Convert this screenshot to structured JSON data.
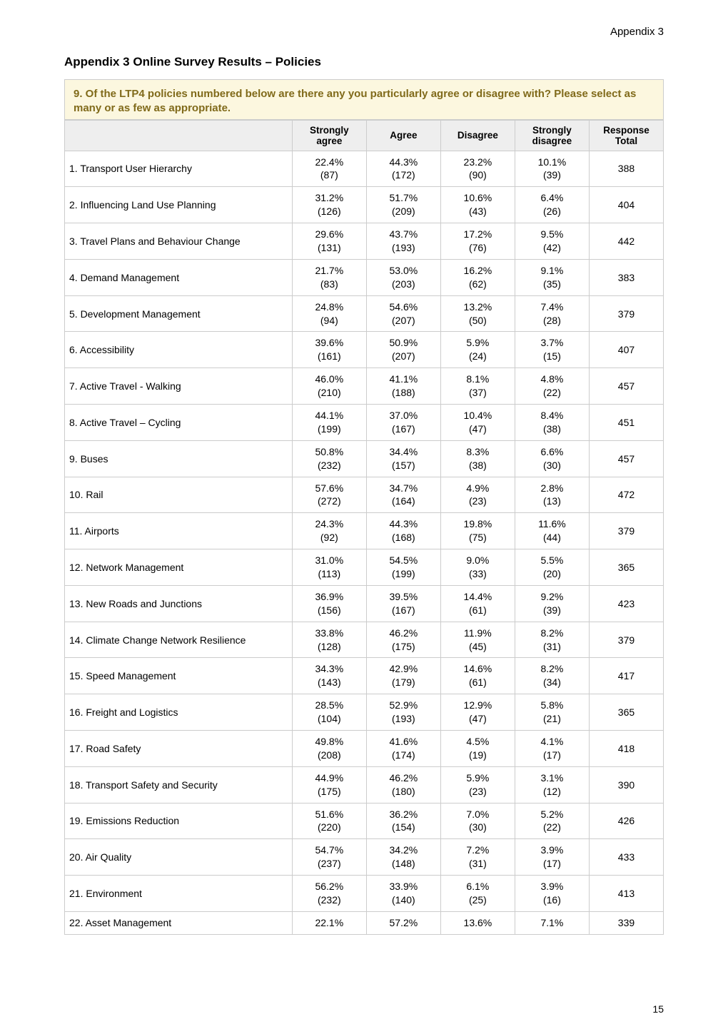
{
  "page": {
    "top_label": "Appendix 3",
    "title": "Appendix 3   Online Survey Results – Policies",
    "page_number": "15"
  },
  "question": {
    "text": "9. Of the LTP4 policies numbered below are there any you particularly agree or disagree with? Please select as many or as few as appropriate."
  },
  "table": {
    "columns": [
      "",
      "Strongly agree",
      "Agree",
      "Disagree",
      "Strongly disagree",
      "Response Total"
    ],
    "col_widths_pct": [
      38,
      12.4,
      12.4,
      12.4,
      12.4,
      12.4
    ],
    "header_bg": "#eeeeee",
    "border_color": "#cccccc",
    "question_bg": "#fcf7df",
    "question_color": "#806a1a",
    "rows": [
      {
        "label": "1. Transport User Hierarchy",
        "cells": [
          {
            "pct": "22.4%",
            "cnt": "(87)"
          },
          {
            "pct": "44.3%",
            "cnt": "(172)"
          },
          {
            "pct": "23.2%",
            "cnt": "(90)"
          },
          {
            "pct": "10.1%",
            "cnt": "(39)"
          }
        ],
        "total": "388"
      },
      {
        "label": "2. Influencing Land Use Planning",
        "cells": [
          {
            "pct": "31.2%",
            "cnt": "(126)"
          },
          {
            "pct": "51.7%",
            "cnt": "(209)"
          },
          {
            "pct": "10.6%",
            "cnt": "(43)"
          },
          {
            "pct": "6.4%",
            "cnt": "(26)"
          }
        ],
        "total": "404"
      },
      {
        "label": "3. Travel Plans and Behaviour Change",
        "cells": [
          {
            "pct": "29.6%",
            "cnt": "(131)"
          },
          {
            "pct": "43.7%",
            "cnt": "(193)"
          },
          {
            "pct": "17.2%",
            "cnt": "(76)"
          },
          {
            "pct": "9.5%",
            "cnt": "(42)"
          }
        ],
        "total": "442"
      },
      {
        "label": "4. Demand Management",
        "cells": [
          {
            "pct": "21.7%",
            "cnt": "(83)"
          },
          {
            "pct": "53.0%",
            "cnt": "(203)"
          },
          {
            "pct": "16.2%",
            "cnt": "(62)"
          },
          {
            "pct": "9.1%",
            "cnt": "(35)"
          }
        ],
        "total": "383"
      },
      {
        "label": "5. Development Management",
        "cells": [
          {
            "pct": "24.8%",
            "cnt": "(94)"
          },
          {
            "pct": "54.6%",
            "cnt": "(207)"
          },
          {
            "pct": "13.2%",
            "cnt": "(50)"
          },
          {
            "pct": "7.4%",
            "cnt": "(28)"
          }
        ],
        "total": "379"
      },
      {
        "label": "6. Accessibility",
        "cells": [
          {
            "pct": "39.6%",
            "cnt": "(161)"
          },
          {
            "pct": "50.9%",
            "cnt": "(207)"
          },
          {
            "pct": "5.9%",
            "cnt": "(24)"
          },
          {
            "pct": "3.7%",
            "cnt": "(15)"
          }
        ],
        "total": "407"
      },
      {
        "label": "7. Active Travel - Walking",
        "cells": [
          {
            "pct": "46.0%",
            "cnt": "(210)"
          },
          {
            "pct": "41.1%",
            "cnt": "(188)"
          },
          {
            "pct": "8.1%",
            "cnt": "(37)"
          },
          {
            "pct": "4.8%",
            "cnt": "(22)"
          }
        ],
        "total": "457"
      },
      {
        "label": "8. Active Travel – Cycling",
        "cells": [
          {
            "pct": "44.1%",
            "cnt": "(199)"
          },
          {
            "pct": "37.0%",
            "cnt": "(167)"
          },
          {
            "pct": "10.4%",
            "cnt": "(47)"
          },
          {
            "pct": "8.4%",
            "cnt": "(38)"
          }
        ],
        "total": "451"
      },
      {
        "label": "9. Buses",
        "cells": [
          {
            "pct": "50.8%",
            "cnt": "(232)"
          },
          {
            "pct": "34.4%",
            "cnt": "(157)"
          },
          {
            "pct": "8.3%",
            "cnt": "(38)"
          },
          {
            "pct": "6.6%",
            "cnt": "(30)"
          }
        ],
        "total": "457"
      },
      {
        "label": "10. Rail",
        "cells": [
          {
            "pct": "57.6%",
            "cnt": "(272)"
          },
          {
            "pct": "34.7%",
            "cnt": "(164)"
          },
          {
            "pct": "4.9%",
            "cnt": "(23)"
          },
          {
            "pct": "2.8%",
            "cnt": "(13)"
          }
        ],
        "total": "472"
      },
      {
        "label": "11. Airports",
        "cells": [
          {
            "pct": "24.3%",
            "cnt": "(92)"
          },
          {
            "pct": "44.3%",
            "cnt": "(168)"
          },
          {
            "pct": "19.8%",
            "cnt": "(75)"
          },
          {
            "pct": "11.6%",
            "cnt": "(44)"
          }
        ],
        "total": "379"
      },
      {
        "label": "12. Network Management",
        "cells": [
          {
            "pct": "31.0%",
            "cnt": "(113)"
          },
          {
            "pct": "54.5%",
            "cnt": "(199)"
          },
          {
            "pct": "9.0%",
            "cnt": "(33)"
          },
          {
            "pct": "5.5%",
            "cnt": "(20)"
          }
        ],
        "total": "365"
      },
      {
        "label": "13. New Roads and Junctions",
        "cells": [
          {
            "pct": "36.9%",
            "cnt": "(156)"
          },
          {
            "pct": "39.5%",
            "cnt": "(167)"
          },
          {
            "pct": "14.4%",
            "cnt": "(61)"
          },
          {
            "pct": "9.2%",
            "cnt": "(39)"
          }
        ],
        "total": "423"
      },
      {
        "label": "14. Climate Change Network Resilience",
        "cells": [
          {
            "pct": "33.8%",
            "cnt": "(128)"
          },
          {
            "pct": "46.2%",
            "cnt": "(175)"
          },
          {
            "pct": "11.9%",
            "cnt": "(45)"
          },
          {
            "pct": "8.2%",
            "cnt": "(31)"
          }
        ],
        "total": "379"
      },
      {
        "label": "15. Speed Management",
        "cells": [
          {
            "pct": "34.3%",
            "cnt": "(143)"
          },
          {
            "pct": "42.9%",
            "cnt": "(179)"
          },
          {
            "pct": "14.6%",
            "cnt": "(61)"
          },
          {
            "pct": "8.2%",
            "cnt": "(34)"
          }
        ],
        "total": "417"
      },
      {
        "label": "16. Freight and Logistics",
        "cells": [
          {
            "pct": "28.5%",
            "cnt": "(104)"
          },
          {
            "pct": "52.9%",
            "cnt": "(193)"
          },
          {
            "pct": "12.9%",
            "cnt": "(47)"
          },
          {
            "pct": "5.8%",
            "cnt": "(21)"
          }
        ],
        "total": "365"
      },
      {
        "label": "17. Road Safety",
        "cells": [
          {
            "pct": "49.8%",
            "cnt": "(208)"
          },
          {
            "pct": "41.6%",
            "cnt": "(174)"
          },
          {
            "pct": "4.5%",
            "cnt": "(19)"
          },
          {
            "pct": "4.1%",
            "cnt": "(17)"
          }
        ],
        "total": "418"
      },
      {
        "label": "18. Transport Safety and Security",
        "cells": [
          {
            "pct": "44.9%",
            "cnt": "(175)"
          },
          {
            "pct": "46.2%",
            "cnt": "(180)"
          },
          {
            "pct": "5.9%",
            "cnt": "(23)"
          },
          {
            "pct": "3.1%",
            "cnt": "(12)"
          }
        ],
        "total": "390"
      },
      {
        "label": "19. Emissions Reduction",
        "cells": [
          {
            "pct": "51.6%",
            "cnt": "(220)"
          },
          {
            "pct": "36.2%",
            "cnt": "(154)"
          },
          {
            "pct": "7.0%",
            "cnt": "(30)"
          },
          {
            "pct": "5.2%",
            "cnt": "(22)"
          }
        ],
        "total": "426"
      },
      {
        "label": "20. Air Quality",
        "cells": [
          {
            "pct": "54.7%",
            "cnt": "(237)"
          },
          {
            "pct": "34.2%",
            "cnt": "(148)"
          },
          {
            "pct": "7.2%",
            "cnt": "(31)"
          },
          {
            "pct": "3.9%",
            "cnt": "(17)"
          }
        ],
        "total": "433"
      },
      {
        "label": "21. Environment",
        "cells": [
          {
            "pct": "56.2%",
            "cnt": "(232)"
          },
          {
            "pct": "33.9%",
            "cnt": "(140)"
          },
          {
            "pct": "6.1%",
            "cnt": "(25)"
          },
          {
            "pct": "3.9%",
            "cnt": "(16)"
          }
        ],
        "total": "413"
      },
      {
        "label": "22. Asset Management",
        "cells": [
          {
            "pct": "22.1%",
            "cnt": ""
          },
          {
            "pct": "57.2%",
            "cnt": ""
          },
          {
            "pct": "13.6%",
            "cnt": ""
          },
          {
            "pct": "7.1%",
            "cnt": ""
          }
        ],
        "total": "339"
      }
    ]
  }
}
